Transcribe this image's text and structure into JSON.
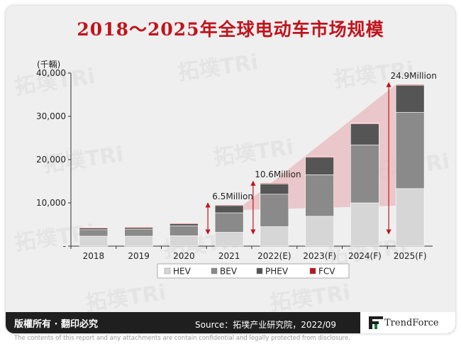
{
  "title": "2018～2025年全球电动车市场规模",
  "unit": "(千輛)",
  "copyright": "版權所有 · 翻印必究",
  "source": "Source：拓墣产业研究院，2022/09",
  "logo_text": "TrendForce",
  "disclaimer": "The contents of this report and any attachments are contain confidential and legally protected from disclosure.",
  "watermark": "拓墣TRi",
  "colors": {
    "title": "#c0141d",
    "HEV": "#d6d6d6",
    "BEV": "#8a8a8a",
    "PHEV": "#555555",
    "FCV": "#c0141d",
    "trend": "#e8b9bd"
  },
  "chart_data": {
    "type": "bar",
    "stacked": true,
    "categories": [
      "2018",
      "2019",
      "2020",
      "2021",
      "2022(E)",
      "2023(F)",
      "2024(F)",
      "2025(F)"
    ],
    "series": [
      {
        "name": "HEV",
        "values": [
          2300,
          2300,
          2400,
          3200,
          4500,
          6900,
          10000,
          13300
        ]
      },
      {
        "name": "BEV",
        "values": [
          1500,
          1600,
          2300,
          4500,
          7500,
          9600,
          13400,
          17600
        ]
      },
      {
        "name": "PHEV",
        "values": [
          500,
          500,
          600,
          1800,
          2500,
          4100,
          4900,
          6300
        ]
      },
      {
        "name": "FCV",
        "values": [
          10,
          10,
          10,
          20,
          50,
          80,
          110,
          150
        ]
      }
    ],
    "annotations": [
      {
        "category": "2021",
        "label": "6.5Million"
      },
      {
        "category": "2022(E)",
        "label": "10.6Million"
      },
      {
        "category": "2025(F)",
        "label": "24.9Million"
      }
    ],
    "ylim": [
      0,
      40000
    ],
    "yticks": [
      0,
      10000,
      20000,
      30000,
      40000
    ],
    "ytick_labels": [
      "-",
      "10,000",
      "20,000",
      "30,000",
      "40,000"
    ],
    "legend_position": "bottom",
    "grid": false
  }
}
